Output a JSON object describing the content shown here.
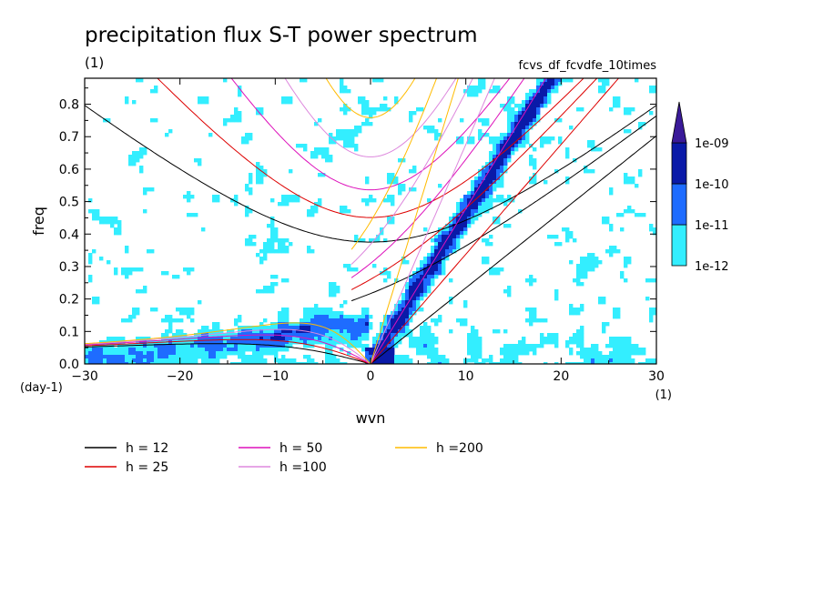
{
  "chart_data": {
    "type": "heatmap",
    "title": "precipitation flux S-T power spectrum",
    "subtitle_left": "(1)",
    "subtitle_right": "fcvs_df_fcvdfe_10times",
    "xlabel": "wvn",
    "ylabel": "freq",
    "x_unit": "(1)",
    "y_unit": "(day-1)",
    "xlim": [
      -30,
      30
    ],
    "ylim": [
      0,
      0.88
    ],
    "x_ticks": [
      -30,
      -20,
      -10,
      0,
      10,
      20,
      30
    ],
    "y_ticks": [
      0.0,
      0.1,
      0.2,
      0.3,
      0.4,
      0.5,
      0.6,
      0.7,
      0.8
    ],
    "x_tick_labels": [
      "−30",
      "−20",
      "−10",
      "0",
      "10",
      "20",
      "30"
    ],
    "y_tick_labels": [
      "0.0",
      "0.1",
      "0.2",
      "0.3",
      "0.4",
      "0.5",
      "0.6",
      "0.7",
      "0.8"
    ],
    "colorbar": {
      "labels": [
        "1e-12",
        "1e-11",
        "1e-10",
        "1e-09"
      ],
      "colors": [
        "#33eeff",
        "#1e6cff",
        "#0a1aa8",
        "#3a1a99"
      ],
      "extend": "max"
    },
    "dispersion_curves": [
      {
        "name": "h = 12",
        "h": 12,
        "color": "#000000"
      },
      {
        "name": "h = 25",
        "h": 25,
        "color": "#dd0000"
      },
      {
        "name": "h = 50",
        "h": 50,
        "color": "#dd11bb"
      },
      {
        "name": "h =100",
        "h": 100,
        "color": "#dd88dd"
      },
      {
        "name": "h =200",
        "h": 200,
        "color": "#ffbb00"
      }
    ],
    "grid": false,
    "legend_position": "bottom"
  }
}
